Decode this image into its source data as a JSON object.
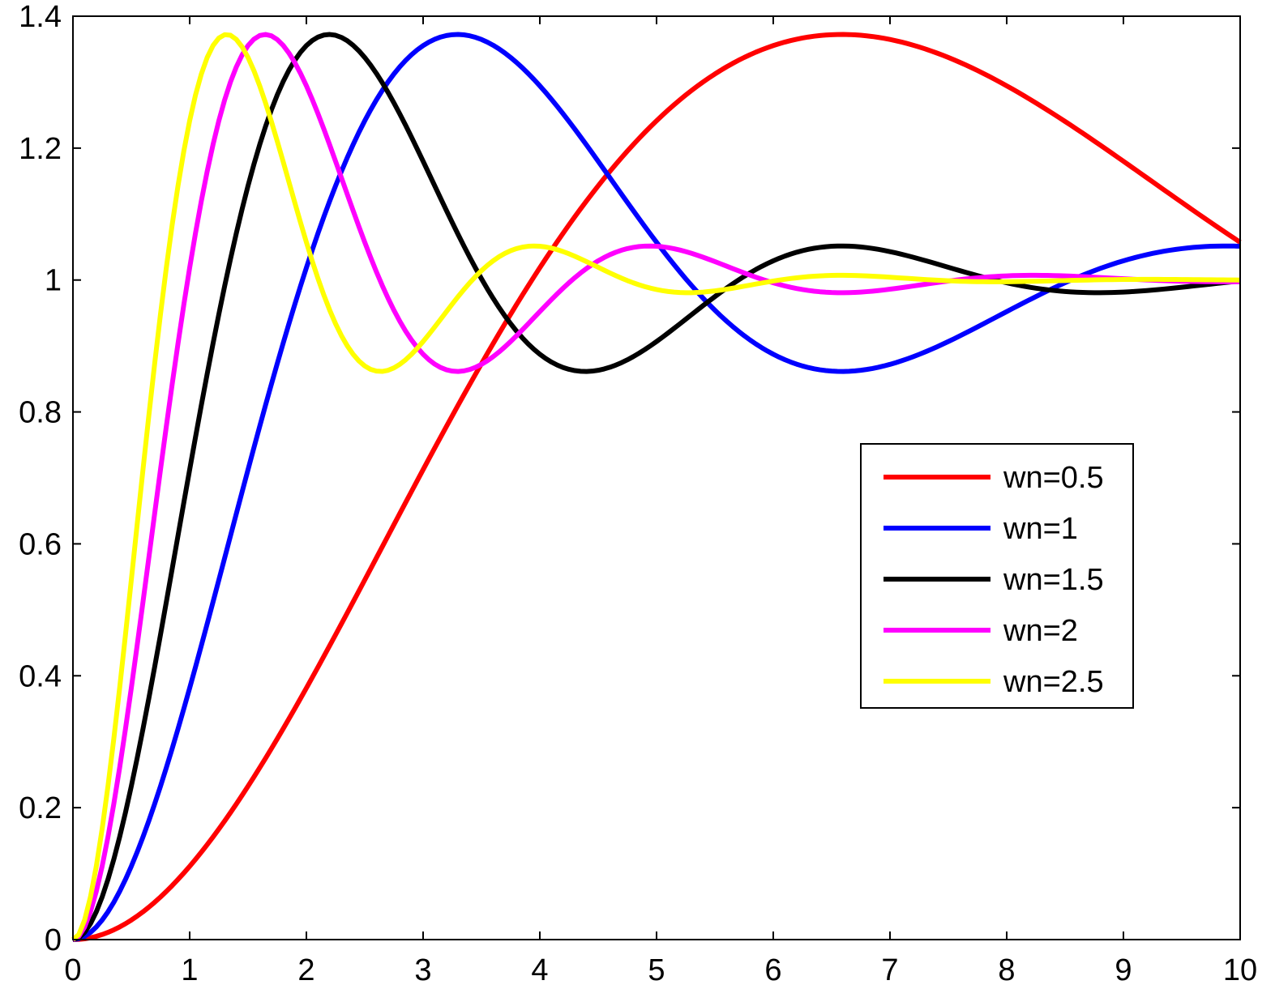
{
  "chart_data": {
    "type": "line",
    "title": "",
    "xlabel": "",
    "ylabel": "",
    "xlim": [
      0,
      10
    ],
    "ylim": [
      0,
      1.4
    ],
    "xticks": [
      "0",
      "1",
      "2",
      "3",
      "4",
      "5",
      "6",
      "7",
      "8",
      "9",
      "10"
    ],
    "yticks": [
      "0",
      "0.2",
      "0.4",
      "0.6",
      "0.8",
      "1",
      "1.2",
      "1.4"
    ],
    "grid": false,
    "legend_position": "right",
    "zeta": 0.3,
    "x_step": 0.05,
    "series": [
      {
        "name": "wn=0.5",
        "wn": 0.5,
        "color": "#ff0000"
      },
      {
        "name": "wn=1",
        "wn": 1,
        "color": "#0000ff"
      },
      {
        "name": "wn=1.5",
        "wn": 1.5,
        "color": "#000000"
      },
      {
        "name": "wn=2",
        "wn": 2,
        "color": "#ff00ff"
      },
      {
        "name": "wn=2.5",
        "wn": 2.5,
        "color": "#ffff00"
      }
    ]
  }
}
